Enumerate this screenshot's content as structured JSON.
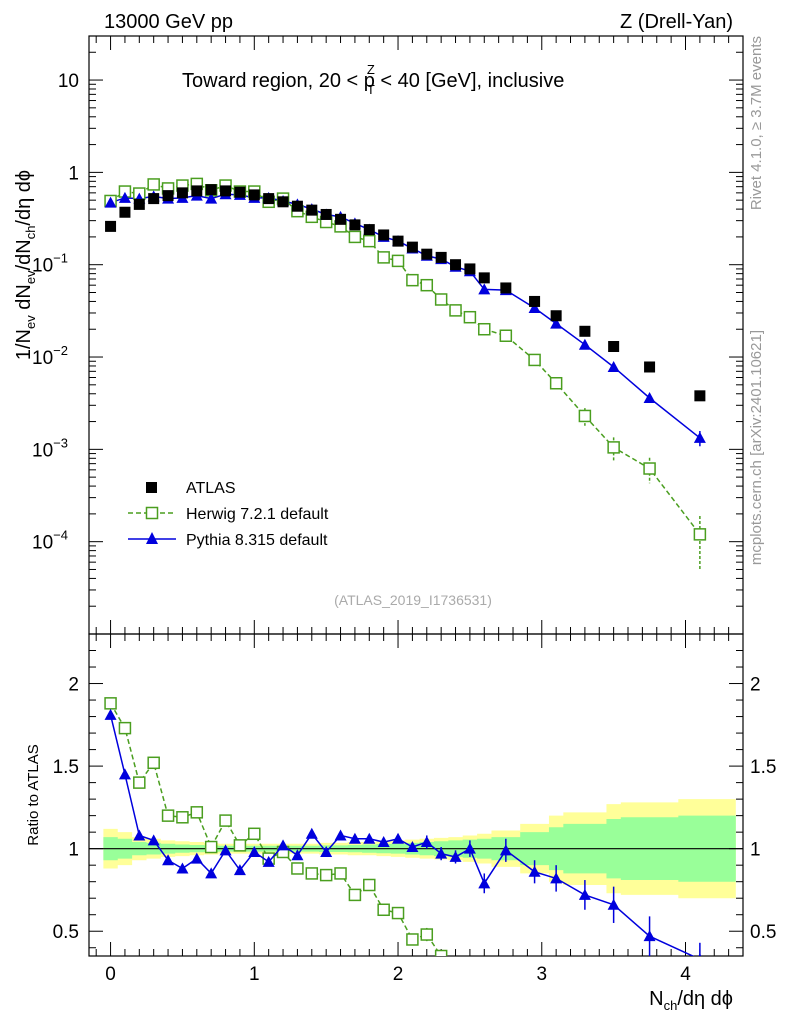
{
  "chart_data": {
    "type": "scatter",
    "header_left": "13000 GeV pp",
    "header_right": "Z (Drell-Yan)",
    "title": {
      "main": "Toward region, 20 < p",
      "sup": "Z",
      "sub": "T",
      "rest": " < 40 [GeV], inclusive"
    },
    "ylabel": "1/N_ev dN_ev/dN_ch/dη dϕ",
    "ylabel_parts": {
      "a": "1/N",
      "a_sub": "ev",
      "b": " dN",
      "b_sub": "ev",
      "c": "/dN",
      "c_sub": "ch",
      "d": "/dη dϕ"
    },
    "xlabel_parts": {
      "a": "N",
      "a_sub": "ch",
      "b": "/dη dϕ"
    },
    "ratio_ylabel": "Ratio to ATLAS",
    "analysis_tag": "(ATLAS_2019_I1736531)",
    "side_label_top": "Rivet 4.1.0, ≥ 3.7M events",
    "side_label_bottom": "mcplots.cern.ch [arXiv:2401.10621]",
    "xlim": [
      -0.15,
      4.4
    ],
    "ylim": [
      1e-05,
      30
    ],
    "ratio_ylim": [
      0.35,
      2.3
    ],
    "x_ticks": [
      {
        "v": 0,
        "label": "0"
      },
      {
        "v": 1,
        "label": "1"
      },
      {
        "v": 2,
        "label": "2"
      },
      {
        "v": 3,
        "label": "3"
      },
      {
        "v": 4,
        "label": "4"
      }
    ],
    "y_ticks": [
      {
        "v": 10,
        "base": "10",
        "exp": ""
      },
      {
        "v": 1,
        "base": "1",
        "exp": ""
      },
      {
        "v": 0.1,
        "base": "10",
        "exp": "−1"
      },
      {
        "v": 0.01,
        "base": "10",
        "exp": "−2"
      },
      {
        "v": 0.001,
        "base": "10",
        "exp": "−3"
      },
      {
        "v": 0.0001,
        "base": "10",
        "exp": "−4"
      }
    ],
    "ratio_ticks": [
      {
        "v": 2,
        "label": "2"
      },
      {
        "v": 1.5,
        "label": "1.5"
      },
      {
        "v": 1,
        "label": "1"
      },
      {
        "v": 0.5,
        "label": "0.5"
      }
    ],
    "legend": {
      "position": "lower-left",
      "entries": [
        {
          "name": "ATLAS",
          "marker": "square-filled",
          "color": "#000000"
        },
        {
          "name": "Herwig 7.2.1 default",
          "marker": "square-open",
          "color": "#4a9e1f"
        },
        {
          "name": "Pythia 8.315 default",
          "marker": "triangle",
          "color": "#0000dd"
        }
      ]
    },
    "colors": {
      "band_inner": "#99ff99",
      "band_outer": "#ffff99",
      "data": "#000000",
      "herwig": "#4a9e1f",
      "pythia": "#0000dd"
    },
    "x": [
      0.0,
      0.1,
      0.2,
      0.3,
      0.4,
      0.5,
      0.6,
      0.7,
      0.8,
      0.9,
      1.0,
      1.1,
      1.2,
      1.3,
      1.4,
      1.5,
      1.6,
      1.7,
      1.8,
      1.9,
      2.0,
      2.1,
      2.2,
      2.3,
      2.4,
      2.5,
      2.6,
      2.75,
      2.95,
      3.1,
      3.3,
      3.5,
      3.75,
      4.1
    ],
    "series": [
      {
        "name": "ATLAS",
        "values": [
          0.26,
          0.37,
          0.45,
          0.52,
          0.56,
          0.6,
          0.63,
          0.65,
          0.63,
          0.61,
          0.57,
          0.52,
          0.48,
          0.43,
          0.39,
          0.35,
          0.31,
          0.27,
          0.24,
          0.21,
          0.18,
          0.155,
          0.13,
          0.12,
          0.1,
          0.09,
          0.072,
          0.056,
          0.04,
          0.028,
          0.019,
          0.013,
          0.0078,
          0.0038
        ]
      },
      {
        "name": "Herwig 7.2.1 default",
        "values": [
          0.49,
          0.62,
          0.59,
          0.74,
          0.67,
          0.72,
          0.75,
          0.64,
          0.72,
          0.62,
          0.62,
          0.48,
          0.52,
          0.38,
          0.33,
          0.29,
          0.26,
          0.2,
          0.18,
          0.12,
          0.11,
          0.068,
          0.06,
          0.042,
          0.032,
          0.027,
          0.02,
          0.017,
          0.0093,
          0.0052,
          0.0023,
          0.00105,
          0.00062,
          0.00012
        ],
        "errors": [
          0.01,
          0.01,
          0.01,
          0.01,
          0.01,
          0.01,
          0.01,
          0.01,
          0.01,
          0.01,
          0.01,
          0.01,
          0.01,
          0.008,
          0.007,
          0.006,
          0.005,
          0.004,
          0.004,
          0.003,
          0.003,
          0.002,
          0.002,
          0.0015,
          0.0012,
          0.001,
          0.0008,
          0.0008,
          0.0006,
          0.0004,
          0.0005,
          0.0003,
          0.00019,
          7e-05
        ]
      },
      {
        "name": "Pythia 8.315 default",
        "values": [
          0.47,
          0.53,
          0.52,
          0.55,
          0.52,
          0.53,
          0.56,
          0.52,
          0.58,
          0.57,
          0.53,
          0.53,
          0.49,
          0.45,
          0.4,
          0.35,
          0.33,
          0.28,
          0.24,
          0.2,
          0.18,
          0.15,
          0.125,
          0.115,
          0.095,
          0.085,
          0.054,
          0.053,
          0.034,
          0.023,
          0.0136,
          0.0078,
          0.0036,
          0.00133
        ],
        "errors": [
          0.01,
          0.01,
          0.01,
          0.01,
          0.01,
          0.01,
          0.01,
          0.01,
          0.01,
          0.01,
          0.01,
          0.01,
          0.01,
          0.008,
          0.007,
          0.006,
          0.005,
          0.004,
          0.004,
          0.003,
          0.003,
          0.002,
          0.002,
          0.0015,
          0.0012,
          0.001,
          0.0014,
          0.001,
          0.0008,
          0.0005,
          0.0004,
          0.0008,
          0.0005,
          0.00025
        ]
      }
    ],
    "ratio": {
      "herwig": [
        1.88,
        1.73,
        1.4,
        1.52,
        1.2,
        1.19,
        1.22,
        1.01,
        1.17,
        1.02,
        1.09,
        0.94,
        0.98,
        0.88,
        0.85,
        0.84,
        0.85,
        0.72,
        0.78,
        0.63,
        0.61,
        0.45,
        0.48,
        0.35
      ],
      "herwig_err": [
        0.02,
        0.02,
        0.02,
        0.02,
        0.02,
        0.02,
        0.02,
        0.02,
        0.02,
        0.02,
        0.02,
        0.02,
        0.02,
        0.02,
        0.02,
        0.02,
        0.02,
        0.02,
        0.02,
        0.02,
        0.03,
        0.03,
        0.04,
        0.03
      ],
      "pythia": [
        1.81,
        1.45,
        1.08,
        1.05,
        0.93,
        0.88,
        0.94,
        0.85,
        0.99,
        0.87,
        0.98,
        0.92,
        1.02,
        0.96,
        1.09,
        0.98,
        1.08,
        1.06,
        1.06,
        1.04,
        1.06,
        1.01,
        1.04,
        0.97,
        0.95,
        1.0,
        0.79,
        0.99,
        0.86,
        0.82,
        0.72,
        0.66,
        0.47,
        0.33
      ],
      "pythia_err": [
        0.02,
        0.02,
        0.02,
        0.02,
        0.02,
        0.02,
        0.02,
        0.02,
        0.02,
        0.02,
        0.02,
        0.02,
        0.02,
        0.02,
        0.03,
        0.03,
        0.03,
        0.03,
        0.03,
        0.03,
        0.03,
        0.03,
        0.04,
        0.04,
        0.04,
        0.05,
        0.06,
        0.07,
        0.07,
        0.08,
        0.09,
        0.11,
        0.12,
        0.1
      ],
      "band_x": [
        -0.05,
        0.05,
        0.15,
        0.25,
        0.35,
        0.45,
        0.55,
        0.65,
        0.75,
        0.85,
        0.95,
        1.05,
        1.15,
        1.25,
        1.35,
        1.45,
        1.55,
        1.65,
        1.75,
        1.85,
        1.95,
        2.05,
        2.15,
        2.25,
        2.35,
        2.45,
        2.55,
        2.65,
        2.85,
        3.05,
        3.15,
        3.45,
        3.55,
        3.95,
        4.25,
        4.4
      ],
      "band_outer_half": [
        0.12,
        0.1,
        0.07,
        0.06,
        0.05,
        0.045,
        0.04,
        0.035,
        0.03,
        0.03,
        0.03,
        0.03,
        0.03,
        0.03,
        0.03,
        0.035,
        0.035,
        0.04,
        0.04,
        0.045,
        0.05,
        0.055,
        0.06,
        0.065,
        0.07,
        0.08,
        0.09,
        0.11,
        0.15,
        0.2,
        0.22,
        0.27,
        0.28,
        0.3,
        0.3,
        0.3
      ],
      "band_inner_half": [
        0.07,
        0.06,
        0.04,
        0.035,
        0.03,
        0.025,
        0.022,
        0.02,
        0.018,
        0.018,
        0.018,
        0.018,
        0.018,
        0.018,
        0.018,
        0.02,
        0.02,
        0.022,
        0.025,
        0.028,
        0.03,
        0.035,
        0.04,
        0.045,
        0.05,
        0.055,
        0.06,
        0.07,
        0.1,
        0.13,
        0.15,
        0.18,
        0.19,
        0.2,
        0.2,
        0.2
      ]
    }
  }
}
